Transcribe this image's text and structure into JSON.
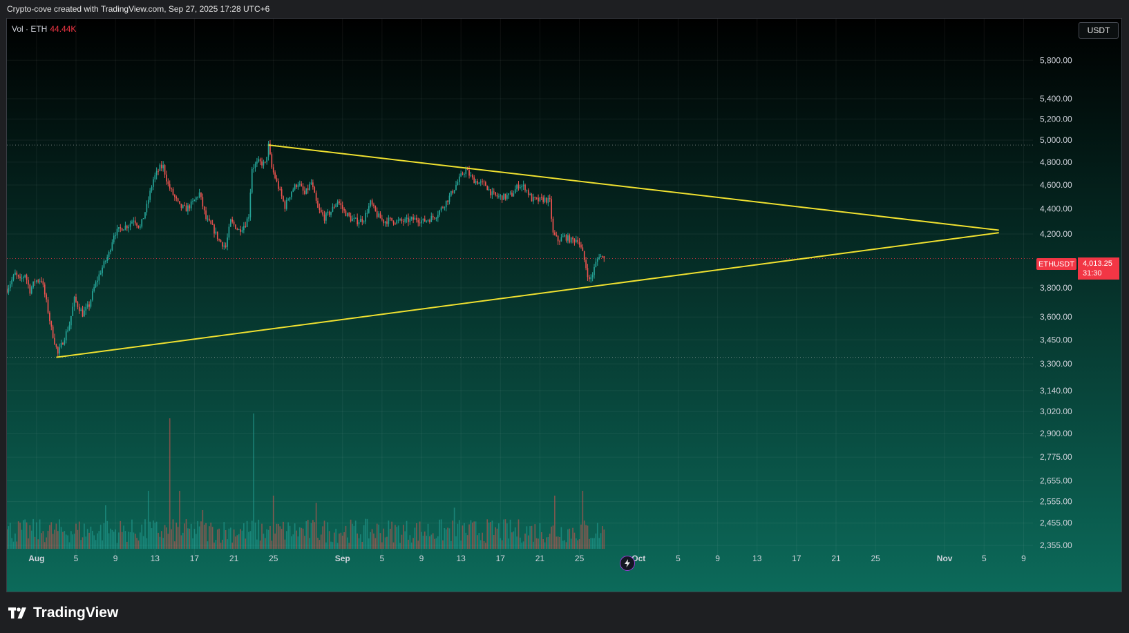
{
  "header": {
    "text": "Crypto-cove created with TradingView.com, Sep 27, 2025 17:28 UTC+6"
  },
  "volume_legend": {
    "label": "Vol · ETH",
    "value": "44.44K"
  },
  "price_axis": {
    "currency": "USDT"
  },
  "symbol": {
    "name": "ETHUSDT",
    "price": "4,013.25",
    "countdown": "31:30"
  },
  "brand": {
    "name": "TradingView"
  },
  "icons": {
    "brand_logo": "tradingview-logo-icon",
    "replay": "lightning-icon"
  },
  "colors": {
    "up": "#26a69a",
    "down": "#ef5350",
    "trendline": "#f0e130",
    "background_top": "#000000",
    "background_bottom": "#0c6a5a",
    "price_line": "#f23645"
  },
  "chart_data": {
    "type": "candlestick",
    "symbol": "ETHUSDT",
    "interval": "4h",
    "y_scale": "log",
    "ylim": [
      2290,
      6250
    ],
    "y_ticks": [
      5800,
      5400,
      5200,
      5000,
      4800,
      4600,
      4400,
      4200,
      3800,
      3600,
      3450,
      3300,
      3140,
      3020,
      2900,
      2775,
      2655,
      2555,
      2455,
      2355
    ],
    "y_tick_labels": [
      "5,800.00",
      "5,400.00",
      "5,200.00",
      "5,000.00",
      "4,800.00",
      "4,600.00",
      "4,400.00",
      "4,200.00",
      "3,800.00",
      "3,600.00",
      "3,450.00",
      "3,300.00",
      "3,140.00",
      "3,020.00",
      "2,900.00",
      "2,775.00",
      "2,655.00",
      "2,555.00",
      "2,455.00",
      "2,355.00"
    ],
    "x_range": [
      "2025-07-29",
      "2025-11-11"
    ],
    "x_ticks": [
      {
        "date": "2025-08-01",
        "label": "Aug"
      },
      {
        "date": "2025-08-05",
        "label": "5"
      },
      {
        "date": "2025-08-09",
        "label": "9"
      },
      {
        "date": "2025-08-13",
        "label": "13"
      },
      {
        "date": "2025-08-17",
        "label": "17"
      },
      {
        "date": "2025-08-21",
        "label": "21"
      },
      {
        "date": "2025-08-25",
        "label": "25"
      },
      {
        "date": "2025-09-01",
        "label": "Sep"
      },
      {
        "date": "2025-09-05",
        "label": "5"
      },
      {
        "date": "2025-09-09",
        "label": "9"
      },
      {
        "date": "2025-09-13",
        "label": "13"
      },
      {
        "date": "2025-09-17",
        "label": "17"
      },
      {
        "date": "2025-09-21",
        "label": "21"
      },
      {
        "date": "2025-09-25",
        "label": "25"
      },
      {
        "date": "2025-10-01",
        "label": "Oct"
      },
      {
        "date": "2025-10-05",
        "label": "5"
      },
      {
        "date": "2025-10-09",
        "label": "9"
      },
      {
        "date": "2025-10-13",
        "label": "13"
      },
      {
        "date": "2025-10-17",
        "label": "17"
      },
      {
        "date": "2025-10-21",
        "label": "21"
      },
      {
        "date": "2025-10-25",
        "label": "25"
      },
      {
        "date": "2025-11-01",
        "label": "Nov"
      },
      {
        "date": "2025-11-05",
        "label": "5"
      },
      {
        "date": "2025-11-09",
        "label": "9"
      }
    ],
    "price_path": [
      [
        "2025-07-29 00:00",
        3790
      ],
      [
        "2025-07-29 20:00",
        3900
      ],
      [
        "2025-07-30 08:00",
        3850
      ],
      [
        "2025-07-30 20:00",
        3900
      ],
      [
        "2025-07-31 08:00",
        3780
      ],
      [
        "2025-07-31 20:00",
        3850
      ],
      [
        "2025-08-01 12:00",
        3860
      ],
      [
        "2025-08-02 00:00",
        3700
      ],
      [
        "2025-08-02 12:00",
        3520
      ],
      [
        "2025-08-03 04:00",
        3360
      ],
      [
        "2025-08-03 16:00",
        3440
      ],
      [
        "2025-08-04 08:00",
        3550
      ],
      [
        "2025-08-04 20:00",
        3720
      ],
      [
        "2025-08-05 16:00",
        3620
      ],
      [
        "2025-08-06 08:00",
        3680
      ],
      [
        "2025-08-06 20:00",
        3800
      ],
      [
        "2025-08-07 12:00",
        3920
      ],
      [
        "2025-08-08 08:00",
        4050
      ],
      [
        "2025-08-08 20:00",
        4200
      ],
      [
        "2025-08-09 16:00",
        4250
      ],
      [
        "2025-08-10 08:00",
        4270
      ],
      [
        "2025-08-10 20:00",
        4320
      ],
      [
        "2025-08-11 12:00",
        4250
      ],
      [
        "2025-08-12 04:00",
        4420
      ],
      [
        "2025-08-12 20:00",
        4650
      ],
      [
        "2025-08-13 12:00",
        4750
      ],
      [
        "2025-08-13 20:00",
        4760
      ],
      [
        "2025-08-14 08:00",
        4600
      ],
      [
        "2025-08-14 20:00",
        4520
      ],
      [
        "2025-08-15 12:00",
        4420
      ],
      [
        "2025-08-16 04:00",
        4400
      ],
      [
        "2025-08-16 20:00",
        4450
      ],
      [
        "2025-08-17 12:00",
        4530
      ],
      [
        "2025-08-18 04:00",
        4320
      ],
      [
        "2025-08-18 20:00",
        4250
      ],
      [
        "2025-08-19 12:00",
        4150
      ],
      [
        "2025-08-20 04:00",
        4100
      ],
      [
        "2025-08-20 16:00",
        4300
      ],
      [
        "2025-08-21 12:00",
        4230
      ],
      [
        "2025-08-22 04:00",
        4280
      ],
      [
        "2025-08-22 12:00",
        4350
      ],
      [
        "2025-08-22 20:00",
        4750
      ],
      [
        "2025-08-23 12:00",
        4800
      ],
      [
        "2025-08-24 04:00",
        4780
      ],
      [
        "2025-08-24 12:00",
        4950
      ],
      [
        "2025-08-24 20:00",
        4750
      ],
      [
        "2025-08-25 12:00",
        4580
      ],
      [
        "2025-08-26 04:00",
        4420
      ],
      [
        "2025-08-26 20:00",
        4550
      ],
      [
        "2025-08-27 12:00",
        4620
      ],
      [
        "2025-08-28 04:00",
        4520
      ],
      [
        "2025-08-28 20:00",
        4620
      ],
      [
        "2025-08-29 12:00",
        4400
      ],
      [
        "2025-08-30 04:00",
        4330
      ],
      [
        "2025-08-30 20:00",
        4380
      ],
      [
        "2025-08-31 12:00",
        4470
      ],
      [
        "2025-09-01 04:00",
        4380
      ],
      [
        "2025-09-01 20:00",
        4320
      ],
      [
        "2025-09-02 12:00",
        4300
      ],
      [
        "2025-09-03 04:00",
        4320
      ],
      [
        "2025-09-03 20:00",
        4450
      ],
      [
        "2025-09-04 12:00",
        4350
      ],
      [
        "2025-09-05 04:00",
        4300
      ],
      [
        "2025-09-05 20:00",
        4310
      ],
      [
        "2025-09-06 12:00",
        4300
      ],
      [
        "2025-09-07 04:00",
        4300
      ],
      [
        "2025-09-07 20:00",
        4310
      ],
      [
        "2025-09-08 12:00",
        4320
      ],
      [
        "2025-09-09 04:00",
        4300
      ],
      [
        "2025-09-09 20:00",
        4320
      ],
      [
        "2025-09-10 12:00",
        4350
      ],
      [
        "2025-09-11 04:00",
        4420
      ],
      [
        "2025-09-11 20:00",
        4500
      ],
      [
        "2025-09-12 12:00",
        4600
      ],
      [
        "2025-09-13 04:00",
        4700
      ],
      [
        "2025-09-13 12:00",
        4730
      ],
      [
        "2025-09-14 04:00",
        4650
      ],
      [
        "2025-09-14 20:00",
        4620
      ],
      [
        "2025-09-15 12:00",
        4600
      ],
      [
        "2025-09-16 04:00",
        4520
      ],
      [
        "2025-09-16 20:00",
        4500
      ],
      [
        "2025-09-17 12:00",
        4500
      ],
      [
        "2025-09-18 04:00",
        4520
      ],
      [
        "2025-09-18 20:00",
        4600
      ],
      [
        "2025-09-19 12:00",
        4580
      ],
      [
        "2025-09-20 04:00",
        4480
      ],
      [
        "2025-09-20 20:00",
        4470
      ],
      [
        "2025-09-21 12:00",
        4480
      ],
      [
        "2025-09-22 00:00",
        4460
      ],
      [
        "2025-09-22 08:00",
        4200
      ],
      [
        "2025-09-22 20:00",
        4150
      ],
      [
        "2025-09-23 12:00",
        4180
      ],
      [
        "2025-09-24 04:00",
        4150
      ],
      [
        "2025-09-24 20:00",
        4160
      ],
      [
        "2025-09-25 08:00",
        4050
      ],
      [
        "2025-09-25 16:00",
        3950
      ],
      [
        "2025-09-26 00:00",
        3850
      ],
      [
        "2025-09-26 08:00",
        3900
      ],
      [
        "2025-09-26 16:00",
        3980
      ],
      [
        "2025-09-27 00:00",
        4040
      ],
      [
        "2025-09-27 12:00",
        4013
      ]
    ],
    "trendlines": [
      {
        "name": "",
        "points": [
          [
            "2025-08-24 12:00",
            4955
          ],
          [
            "2025-11-06 12:00",
            4230
          ]
        ]
      },
      {
        "name": "",
        "points": [
          [
            "2025-08-03 00:00",
            3340
          ],
          [
            "2025-11-06 12:00",
            4210
          ]
        ]
      }
    ],
    "horizontal_levels": [
      4955,
      3340
    ],
    "last_price": 4013.25,
    "volume_series": {
      "name": "Vol · ETH",
      "last_value": "44.44K",
      "spikes": [
        {
          "date": "2025-08-08 00:00",
          "value": 90
        },
        {
          "date": "2025-08-12 08:00",
          "value": 120
        },
        {
          "date": "2025-08-14 12:00",
          "value": 270
        },
        {
          "date": "2025-08-15 12:00",
          "value": 120
        },
        {
          "date": "2025-08-17 20:00",
          "value": 80
        },
        {
          "date": "2025-08-23 00:00",
          "value": 280
        },
        {
          "date": "2025-08-25 00:00",
          "value": 110
        },
        {
          "date": "2025-08-29 08:00",
          "value": 95
        },
        {
          "date": "2025-09-12 08:00",
          "value": 85
        },
        {
          "date": "2025-09-22 12:00",
          "value": 110
        },
        {
          "date": "2025-09-25 08:00",
          "value": 120
        }
      ]
    }
  }
}
